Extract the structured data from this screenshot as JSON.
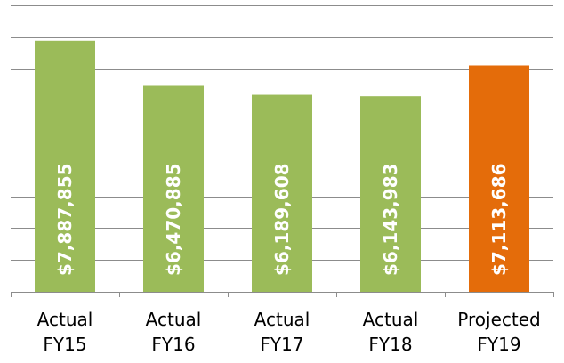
{
  "chart_data": {
    "type": "bar",
    "categories": [
      [
        "Actual",
        "FY15"
      ],
      [
        "Actual",
        "FY16"
      ],
      [
        "Actual",
        "FY17"
      ],
      [
        "Actual",
        "FY18"
      ],
      [
        "Projected",
        "FY19"
      ]
    ],
    "values": [
      7887855,
      6470885,
      6189608,
      6143983,
      7113686
    ],
    "data_labels": [
      "$7,887,855",
      "$6,470,885",
      "$6,189,608",
      "$6,143,983",
      "$7,113,686"
    ],
    "bar_colors": [
      "#9bbb59",
      "#9bbb59",
      "#9bbb59",
      "#9bbb59",
      "#e46c0a"
    ],
    "ylim": [
      0,
      9000000
    ],
    "grid": true,
    "gridline_step": 1000000
  }
}
